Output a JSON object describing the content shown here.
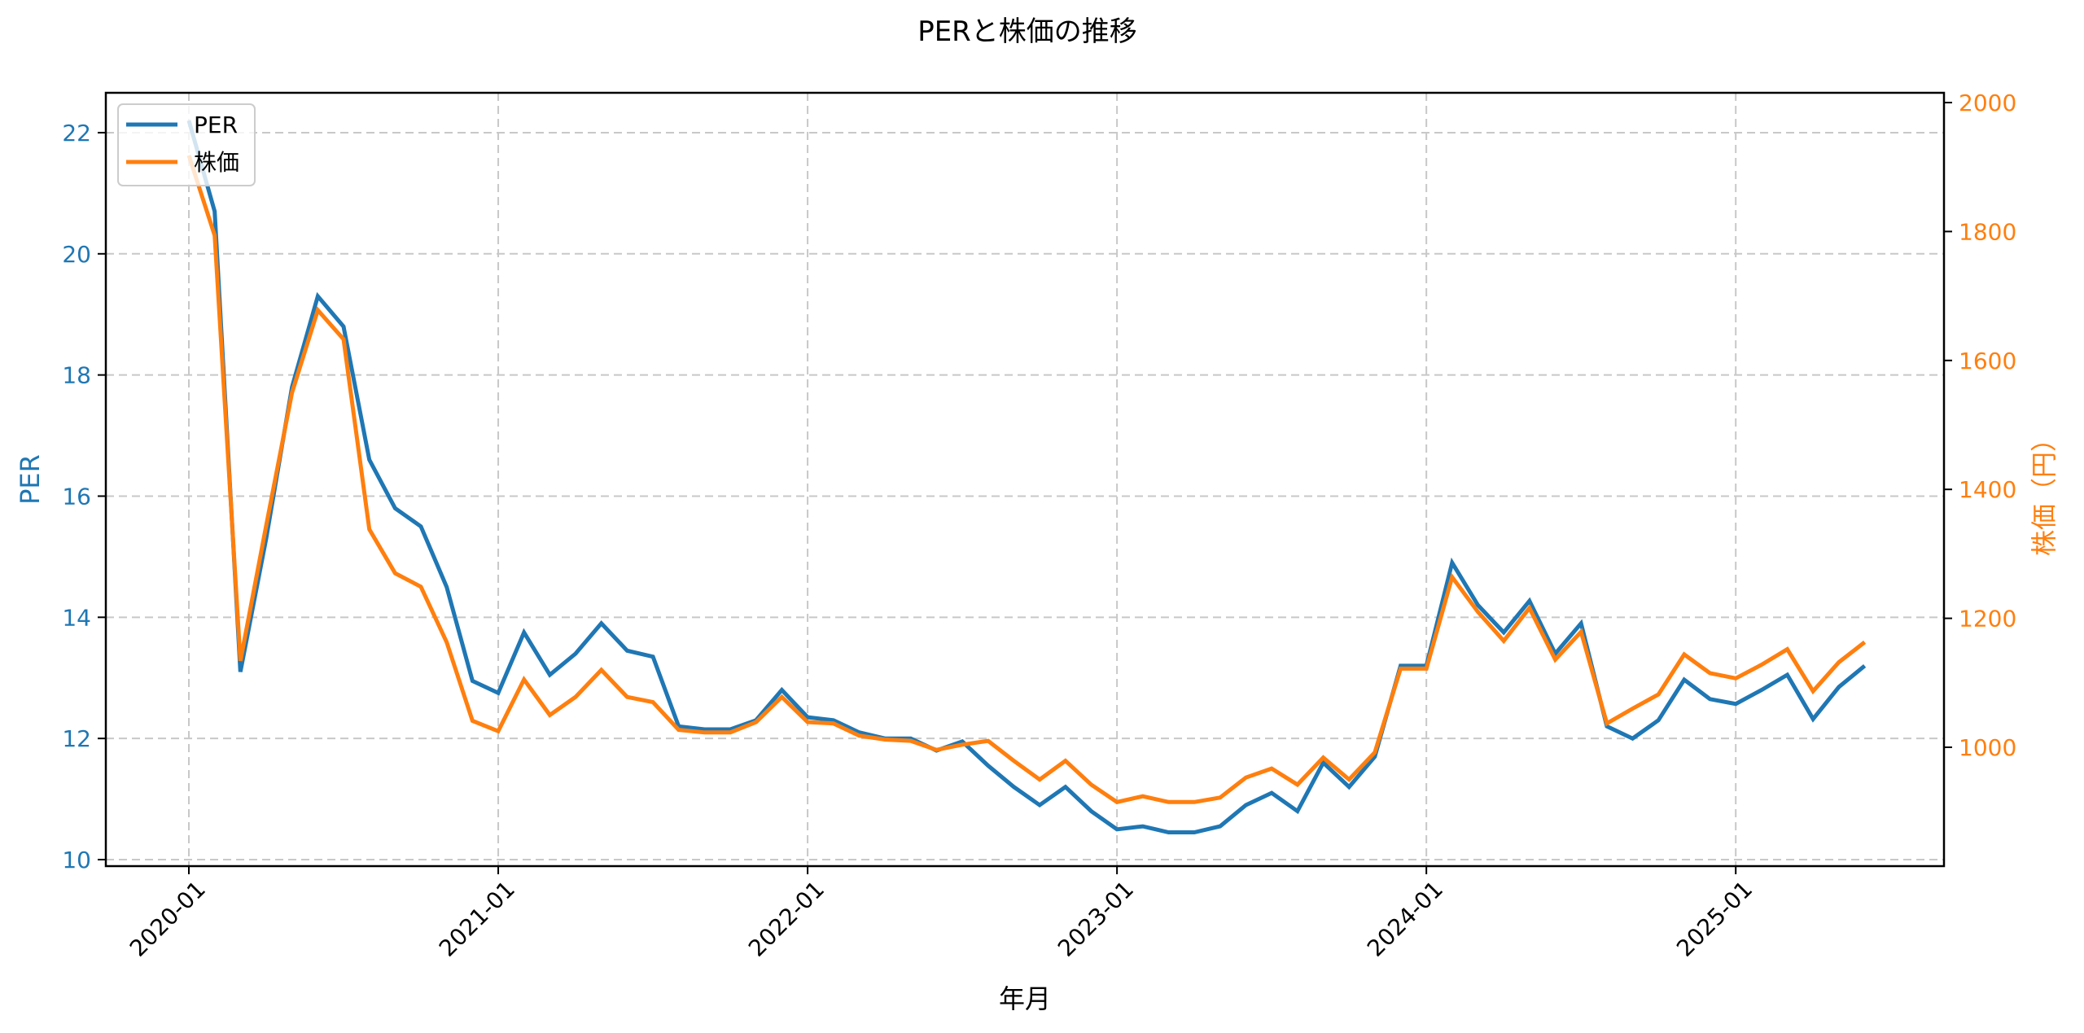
{
  "chart_data": {
    "type": "line",
    "title": "PERと株価の推移",
    "xlabel": "年月",
    "ylabel": "PER",
    "ylabel_right": "株価（円）",
    "ylim": [
      9.8,
      22.7
    ],
    "ylim_right": [
      820,
      2015
    ],
    "grid": true,
    "legend_position": "upper left",
    "x_ticks": [
      "2020-01",
      "2021-01",
      "2022-01",
      "2023-01",
      "2024-01",
      "2025-01"
    ],
    "y_ticks_left": [
      10,
      12,
      14,
      16,
      18,
      20,
      22
    ],
    "y_ticks_right": [
      1000,
      1200,
      1400,
      1600,
      1800,
      2000
    ],
    "x": [
      "2020-01",
      "2020-02",
      "2020-03",
      "2020-04",
      "2020-05",
      "2020-06",
      "2020-07",
      "2020-08",
      "2020-09",
      "2020-10",
      "2020-11",
      "2020-12",
      "2021-01",
      "2021-02",
      "2021-03",
      "2021-04",
      "2021-05",
      "2021-06",
      "2021-07",
      "2021-08",
      "2021-09",
      "2021-10",
      "2021-11",
      "2021-12",
      "2022-01",
      "2022-02",
      "2022-03",
      "2022-04",
      "2022-05",
      "2022-06",
      "2022-07",
      "2022-08",
      "2022-09",
      "2022-10",
      "2022-11",
      "2022-12",
      "2023-01",
      "2023-02",
      "2023-03",
      "2023-04",
      "2023-05",
      "2023-06",
      "2023-07",
      "2023-08",
      "2023-09",
      "2023-10",
      "2023-11",
      "2023-12",
      "2024-01",
      "2024-02",
      "2024-03",
      "2024-04",
      "2024-05",
      "2024-06",
      "2024-07",
      "2024-08",
      "2024-09",
      "2024-10",
      "2024-11",
      "2024-12",
      "2025-01",
      "2025-02",
      "2025-03",
      "2025-04",
      "2025-05",
      "2025-06"
    ],
    "series": [
      {
        "name": "PER",
        "axis": "left",
        "color": "#1f77b4",
        "values": [
          22.2,
          20.7,
          13.1,
          15.3,
          17.8,
          19.3,
          18.8,
          16.6,
          15.8,
          15.5,
          14.5,
          12.95,
          12.75,
          13.75,
          13.05,
          13.4,
          13.9,
          13.45,
          13.35,
          12.2,
          12.15,
          12.15,
          12.3,
          12.8,
          12.35,
          12.3,
          12.1,
          12.0,
          12.0,
          11.8,
          11.95,
          11.55,
          11.2,
          10.9,
          11.2,
          10.8,
          10.5,
          10.55,
          10.45,
          10.45,
          10.55,
          10.9,
          11.1,
          10.8,
          11.6,
          11.2,
          11.7,
          13.2,
          13.2,
          14.9,
          14.2,
          13.75,
          14.27,
          13.4,
          13.9,
          12.2,
          12.0,
          12.3,
          12.97,
          12.65,
          12.57,
          12.8,
          13.05,
          12.32,
          12.85,
          13.2
        ]
      },
      {
        "name": "株価",
        "axis": "right",
        "color": "#ff7f0e",
        "values": [
          1918,
          1794,
          1134,
          1344,
          1550,
          1678,
          1633,
          1338,
          1270,
          1249,
          1163,
          1041,
          1025,
          1105,
          1050,
          1078,
          1120,
          1078,
          1070,
          1027,
          1023,
          1023,
          1039,
          1078,
          1039,
          1037,
          1018,
          1012,
          1010,
          996,
          1004,
          1010,
          979,
          950,
          979,
          942,
          915,
          924,
          915,
          915,
          922,
          953,
          967,
          942,
          984,
          950,
          992,
          1122,
          1122,
          1264,
          1210,
          1165,
          1216,
          1136,
          1179,
          1037,
          1060,
          1082,
          1144,
          1115,
          1107,
          1128,
          1152,
          1087,
          1132,
          1163
        ]
      }
    ]
  },
  "legend": {
    "items": [
      {
        "label": "PER",
        "color": "#1f77b4"
      },
      {
        "label": "株価",
        "color": "#ff7f0e"
      }
    ]
  }
}
